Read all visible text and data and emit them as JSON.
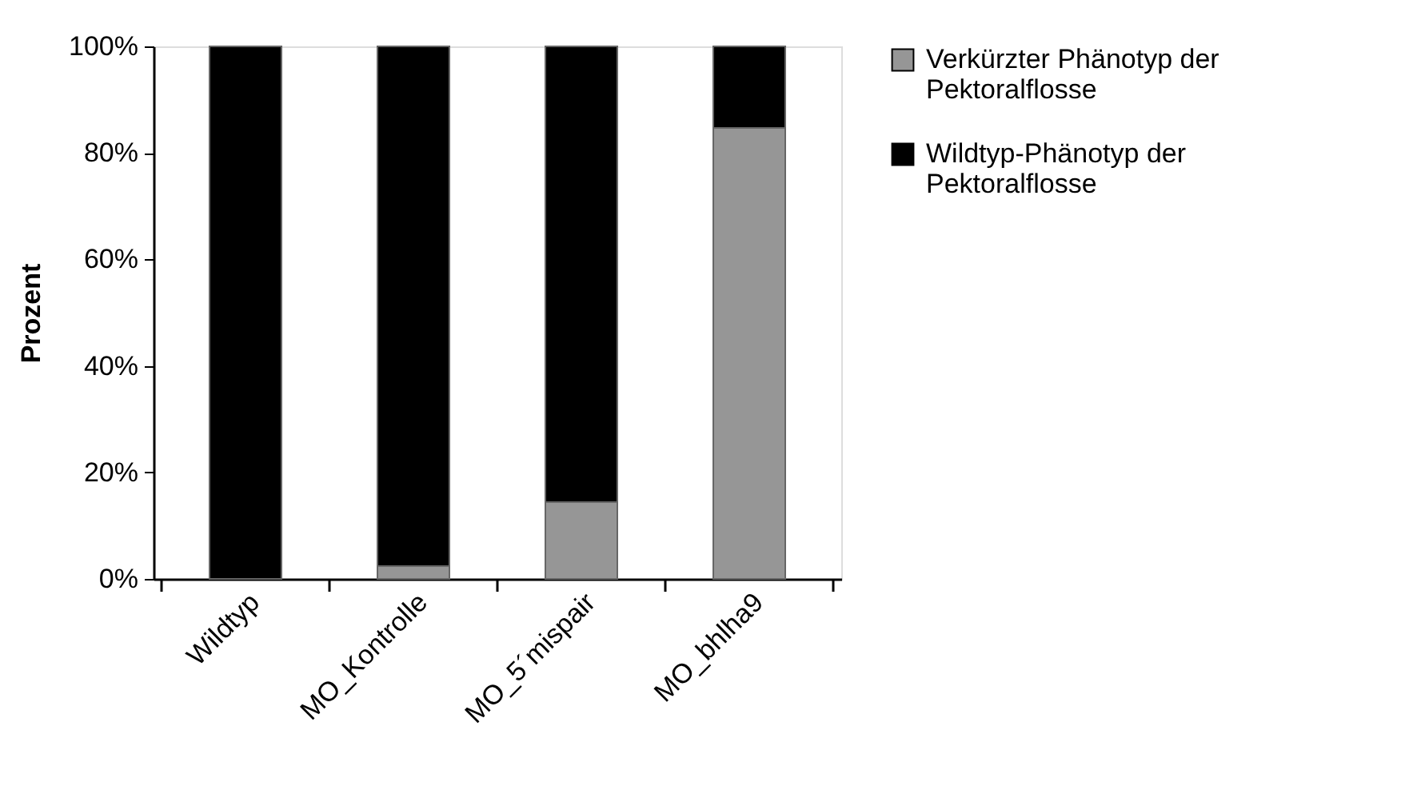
{
  "chart_data": {
    "type": "bar",
    "stacked": true,
    "ylabel": "Prozent",
    "categories": [
      "Wildtyp",
      "MO_Kontrolle",
      "MO_5´mispair",
      "MO_bhlha9"
    ],
    "series": [
      {
        "name": "Verkürzter Phänotyp der Pektoralflosse",
        "color": "#969696",
        "values": [
          0,
          2.4,
          14.4,
          84.7
        ]
      },
      {
        "name": "Wildtyp-Phänotyp der Pektoralflosse",
        "color": "#000000",
        "values": [
          100,
          97.6,
          85.6,
          15.3
        ]
      }
    ],
    "ylim": [
      0,
      100
    ],
    "yticks": [
      {
        "value": 0,
        "label": "0%"
      },
      {
        "value": 20,
        "label": "20%"
      },
      {
        "value": 40,
        "label": "40%"
      },
      {
        "value": 60,
        "label": "60%"
      },
      {
        "value": 80,
        "label": "80%"
      },
      {
        "value": 100,
        "label": "100%"
      }
    ],
    "grid": false,
    "legend": "right"
  }
}
